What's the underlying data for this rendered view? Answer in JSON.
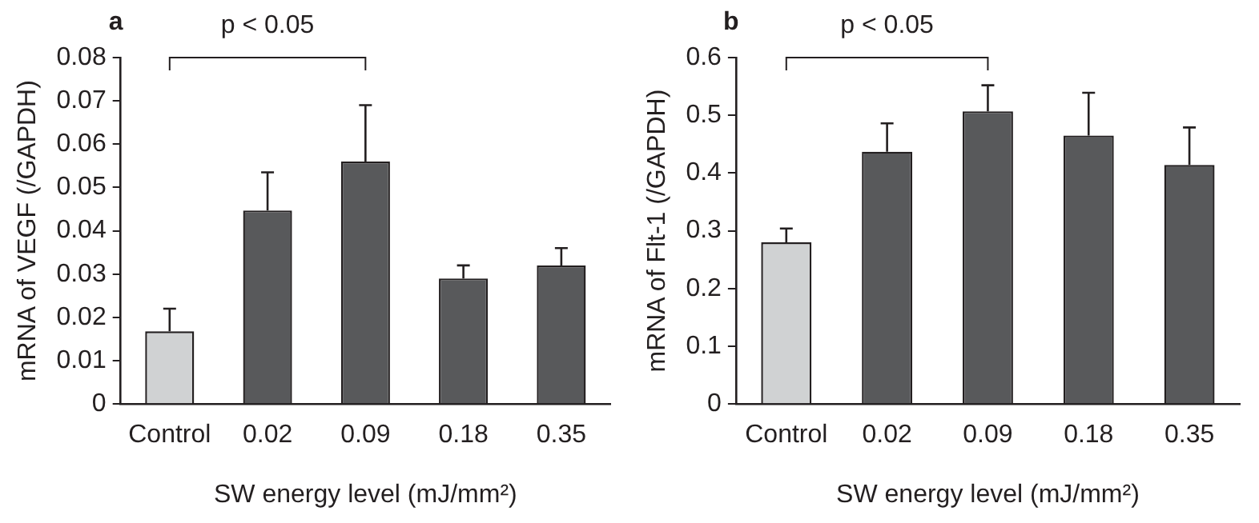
{
  "chart_data": [
    {
      "type": "bar",
      "title": "a",
      "categories": [
        "Control",
        "0.02",
        "0.09",
        "0.18",
        "0.35"
      ],
      "values": [
        0.0168,
        0.0447,
        0.056,
        0.029,
        0.032
      ],
      "colors": [
        "#d0d2d3",
        "#58595b",
        "#58595b",
        "#58595b",
        "#58595b"
      ],
      "errors": [
        [
          0.0168,
          0.022
        ],
        [
          0.0447,
          0.0535
        ],
        [
          0.056,
          0.069
        ],
        [
          0.029,
          0.032
        ],
        [
          0.032,
          0.036
        ]
      ],
      "ylim": [
        0,
        0.08
      ],
      "yticks": [
        0,
        0.01,
        0.02,
        0.03,
        0.04,
        0.05,
        0.06,
        0.07,
        0.08
      ],
      "ylabel": "mRNA of VEGF (/GAPDH)",
      "xlabel": "SW energy level (mJ/mm²)",
      "annotations": [
        "p < 0.05"
      ],
      "grid": false,
      "legend": false
    },
    {
      "type": "bar",
      "title": "b",
      "categories": [
        "Control",
        "0.02",
        "0.09",
        "0.18",
        "0.35"
      ],
      "values": [
        0.28,
        0.437,
        0.507,
        0.465,
        0.414
      ],
      "colors": [
        "#d0d2d3",
        "#58595b",
        "#58595b",
        "#58595b",
        "#58595b"
      ],
      "errors": [
        [
          0.28,
          0.304
        ],
        [
          0.437,
          0.486
        ],
        [
          0.507,
          0.552
        ],
        [
          0.465,
          0.539
        ],
        [
          0.414,
          0.479
        ]
      ],
      "ylim": [
        0,
        0.6
      ],
      "yticks": [
        0,
        0.1,
        0.2,
        0.3,
        0.4,
        0.5,
        0.6
      ],
      "ylabel": "mRNA of Flt-1 (/GAPDH)",
      "xlabel": "SW energy level (mJ/mm²)",
      "annotations": [
        "p < 0.05"
      ],
      "grid": false,
      "legend": false
    }
  ]
}
